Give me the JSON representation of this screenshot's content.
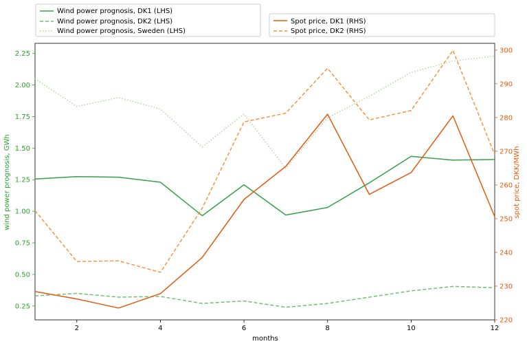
{
  "chart_data": {
    "type": "line",
    "xlabel": "months",
    "ylabel_left": "wind power prognosis, GWh",
    "ylabel_right": "spot price, DKK/MWh",
    "xlim": [
      1,
      12
    ],
    "ylim_left": [
      0.14,
      2.33
    ],
    "ylim_right": [
      220,
      302
    ],
    "x_ticks": [
      2,
      4,
      6,
      8,
      10,
      12
    ],
    "y_ticks_left": [
      0.25,
      0.5,
      0.75,
      1.0,
      1.25,
      1.5,
      1.75,
      2.0,
      2.25
    ],
    "y_ticks_left_labels": [
      "0.25",
      "0.50",
      "0.75",
      "1.00",
      "1.25",
      "1.50",
      "1.75",
      "2.00",
      "2.25"
    ],
    "y_ticks_right": [
      220,
      230,
      240,
      250,
      260,
      270,
      280,
      290,
      300
    ],
    "grid": false,
    "colors": {
      "left_axis": "#2ca02c",
      "right_axis": "#e05a10"
    },
    "series": [
      {
        "name": "Wind power prognosis, DK1 (LHS)",
        "axis": "left",
        "style": "solid",
        "color": "#33a14a",
        "x": [
          1,
          2,
          3,
          4,
          5,
          6,
          7,
          8,
          9,
          10,
          11,
          12
        ],
        "values": [
          1.255,
          1.275,
          1.27,
          1.23,
          0.965,
          1.21,
          0.97,
          1.03,
          1.225,
          1.435,
          1.405,
          1.41
        ]
      },
      {
        "name": "Wind power prognosis, DK2 (LHS)",
        "axis": "left",
        "style": "dashed",
        "color": "#6cc16c",
        "x": [
          1,
          2,
          3,
          4,
          5,
          6,
          7,
          8,
          9,
          10,
          11,
          12
        ],
        "values": [
          0.33,
          0.35,
          0.32,
          0.325,
          0.27,
          0.29,
          0.24,
          0.27,
          0.32,
          0.37,
          0.405,
          0.395
        ]
      },
      {
        "name": "Wind power prognosis, Sweden (LHS)",
        "axis": "left",
        "style": "dotted",
        "color": "#a8dc9c",
        "x": [
          1,
          2,
          3,
          4,
          5,
          6,
          7,
          8,
          9,
          10,
          11,
          12
        ],
        "values": [
          2.05,
          1.83,
          1.9,
          1.81,
          1.51,
          1.77,
          1.34,
          1.74,
          1.91,
          2.1,
          2.19,
          2.23
        ]
      },
      {
        "name": "Spot price, DK1 (RHS)",
        "axis": "right",
        "style": "solid",
        "color": "#e05a10",
        "x": [
          1,
          2,
          3,
          4,
          5,
          6,
          7,
          8,
          9,
          10,
          11,
          12
        ],
        "values": [
          228.4,
          226.2,
          223.5,
          227.8,
          238.5,
          255.7,
          265.5,
          281.0,
          257.2,
          263.7,
          280.5,
          250.6
        ]
      },
      {
        "name": "Spot price, DK2 (RHS)",
        "axis": "right",
        "style": "dashed",
        "color": "#f59440",
        "x": [
          1,
          2,
          3,
          4,
          5,
          6,
          7,
          8,
          9,
          10,
          11,
          12
        ],
        "values": [
          252.4,
          237.3,
          237.5,
          234.1,
          253.1,
          278.7,
          281.3,
          294.6,
          279.3,
          282.1,
          299.9,
          269.0
        ]
      }
    ]
  }
}
